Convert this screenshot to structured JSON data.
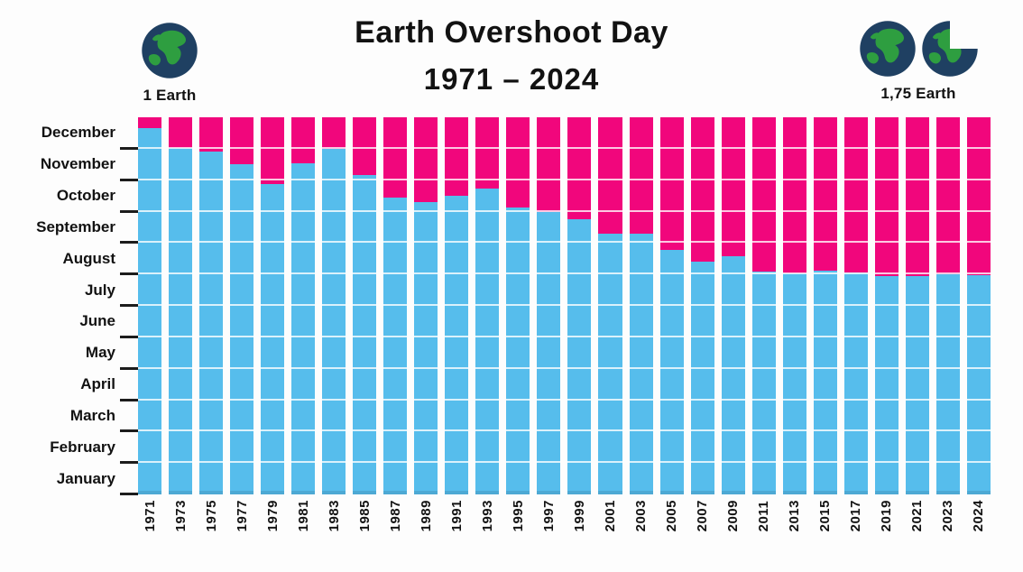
{
  "header": {
    "title_line1": "Earth Overshoot Day",
    "title_line2": "1971 – 2024",
    "legend_left_label": "1 Earth",
    "legend_right_label": "1,75 Earth"
  },
  "colors": {
    "bar_blue": "#56BDEC",
    "bar_pink": "#F1067C",
    "earth_navy": "#1F4062",
    "earth_green": "#2E9E40",
    "text": "#121212",
    "tick": "#1c1c1c"
  },
  "chart_data": {
    "type": "bar",
    "subtype": "stacked-full-year",
    "title": "Earth Overshoot Day",
    "subtitle": "1971 – 2024",
    "description_blue": "part of year within Earth's annual budget (before overshoot day)",
    "description_pink": "part of year after Earth Overshoot Day",
    "grid": "white month separator lines inside bars",
    "legend_position": "top corners (1 Earth left, 1,75 Earth right)",
    "y_axis_months": [
      "January",
      "February",
      "March",
      "April",
      "May",
      "June",
      "July",
      "August",
      "September",
      "October",
      "November",
      "December"
    ],
    "ylim": [
      "Jan 1",
      "Dec 31"
    ],
    "bars": [
      {
        "year": "1971",
        "overshoot_date": "December 21",
        "month": 12,
        "day": 21
      },
      {
        "year": "1973",
        "overshoot_date": "December 2",
        "month": 12,
        "day": 2
      },
      {
        "year": "1975",
        "overshoot_date": "November 28",
        "month": 11,
        "day": 28
      },
      {
        "year": "1977",
        "overshoot_date": "November 16",
        "month": 11,
        "day": 16
      },
      {
        "year": "1979",
        "overshoot_date": "October 28",
        "month": 10,
        "day": 28
      },
      {
        "year": "1981",
        "overshoot_date": "November 17",
        "month": 11,
        "day": 17
      },
      {
        "year": "1983",
        "overshoot_date": "December 1",
        "month": 12,
        "day": 1
      },
      {
        "year": "1985",
        "overshoot_date": "November 6",
        "month": 11,
        "day": 6
      },
      {
        "year": "1987",
        "overshoot_date": "October 15",
        "month": 10,
        "day": 15
      },
      {
        "year": "1989",
        "overshoot_date": "October 10",
        "month": 10,
        "day": 10
      },
      {
        "year": "1991",
        "overshoot_date": "October 17",
        "month": 10,
        "day": 17
      },
      {
        "year": "1993",
        "overshoot_date": "October 24",
        "month": 10,
        "day": 24
      },
      {
        "year": "1995",
        "overshoot_date": "October 5",
        "month": 10,
        "day": 5
      },
      {
        "year": "1997",
        "overshoot_date": "October 1",
        "month": 10,
        "day": 1
      },
      {
        "year": "1999",
        "overshoot_date": "September 24",
        "month": 9,
        "day": 24
      },
      {
        "year": "2001",
        "overshoot_date": "September 10",
        "month": 9,
        "day": 10
      },
      {
        "year": "2003",
        "overshoot_date": "September 10",
        "month": 9,
        "day": 10
      },
      {
        "year": "2005",
        "overshoot_date": "August 25",
        "month": 8,
        "day": 25
      },
      {
        "year": "2007",
        "overshoot_date": "August 14",
        "month": 8,
        "day": 14
      },
      {
        "year": "2009",
        "overshoot_date": "August 19",
        "month": 8,
        "day": 19
      },
      {
        "year": "2011",
        "overshoot_date": "August 4",
        "month": 8,
        "day": 4
      },
      {
        "year": "2013",
        "overshoot_date": "August 2",
        "month": 8,
        "day": 2
      },
      {
        "year": "2015",
        "overshoot_date": "August 5",
        "month": 8,
        "day": 5
      },
      {
        "year": "2017",
        "overshoot_date": "August 3",
        "month": 8,
        "day": 3
      },
      {
        "year": "2019",
        "overshoot_date": "July 30",
        "month": 7,
        "day": 30
      },
      {
        "year": "2021",
        "overshoot_date": "July 30",
        "month": 7,
        "day": 30
      },
      {
        "year": "2023",
        "overshoot_date": "August 1",
        "month": 8,
        "day": 1
      },
      {
        "year": "2024",
        "overshoot_date": "July 31",
        "month": 7,
        "day": 31
      }
    ]
  }
}
